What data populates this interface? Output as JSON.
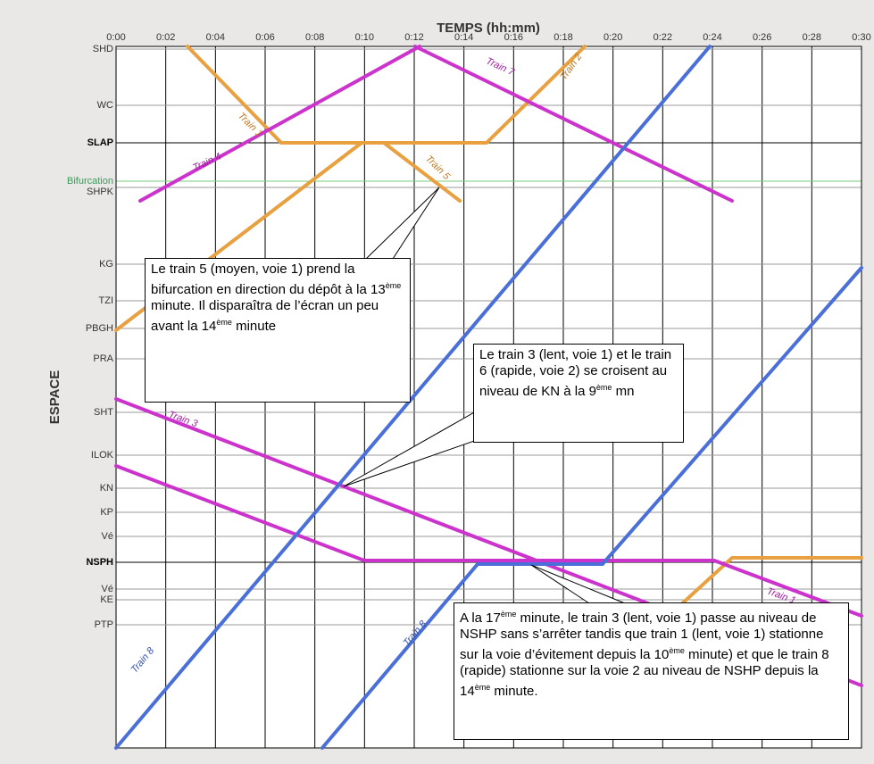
{
  "header": {
    "title": "TEMPS (hh:mm)",
    "y_label": "ESPACE"
  },
  "times": [
    "0:00",
    "0:02",
    "0:04",
    "0:06",
    "0:08",
    "0:10",
    "0:12",
    "0:14",
    "0:16",
    "0:18",
    "0:20",
    "0:22",
    "0:24",
    "0:26",
    "0:28",
    "0:30"
  ],
  "stations": [
    "SHD",
    "WC",
    "SLAP",
    "Bifurcation",
    "SHPK",
    "KG",
    "TZI",
    "PBGH",
    "PRA",
    "SHT",
    "ILOK",
    "KN",
    "KP",
    "Vé",
    "NSPH",
    "Vé",
    "KE",
    "PTP"
  ],
  "trains": [
    "Train 1",
    "Train 2",
    "Train 3",
    "Train 4",
    "Train 5",
    "Train 7",
    "Train 1",
    "Train 8",
    "Train 8"
  ],
  "callouts": [
    [
      "Le train 5 (moyen, voie 1) prend la bifurcation en direction du dépôt à la 13",
      "ème",
      " minute. Il disparaîtra de l’écran un peu avant la 14",
      "ème",
      " minute"
    ],
    [
      "Le train 3 (lent, voie 1) et le train 6 (rapide, voie 2) se croisent au niveau de KN à la 9",
      "ème",
      " mn"
    ],
    [
      "A la 17",
      "ème",
      " minute, le train 3 (lent, voie 1) passe au niveau de NSHP sans s’arrêter tandis que train 1 (lent, voie 1) stationne sur la voie d’évitement depuis la 10",
      "ème",
      " minute) et que le train 8  (rapide) stationne sur la voie 2 au niveau de NSHP depuis la 14",
      "ème",
      " minute."
    ]
  ]
}
